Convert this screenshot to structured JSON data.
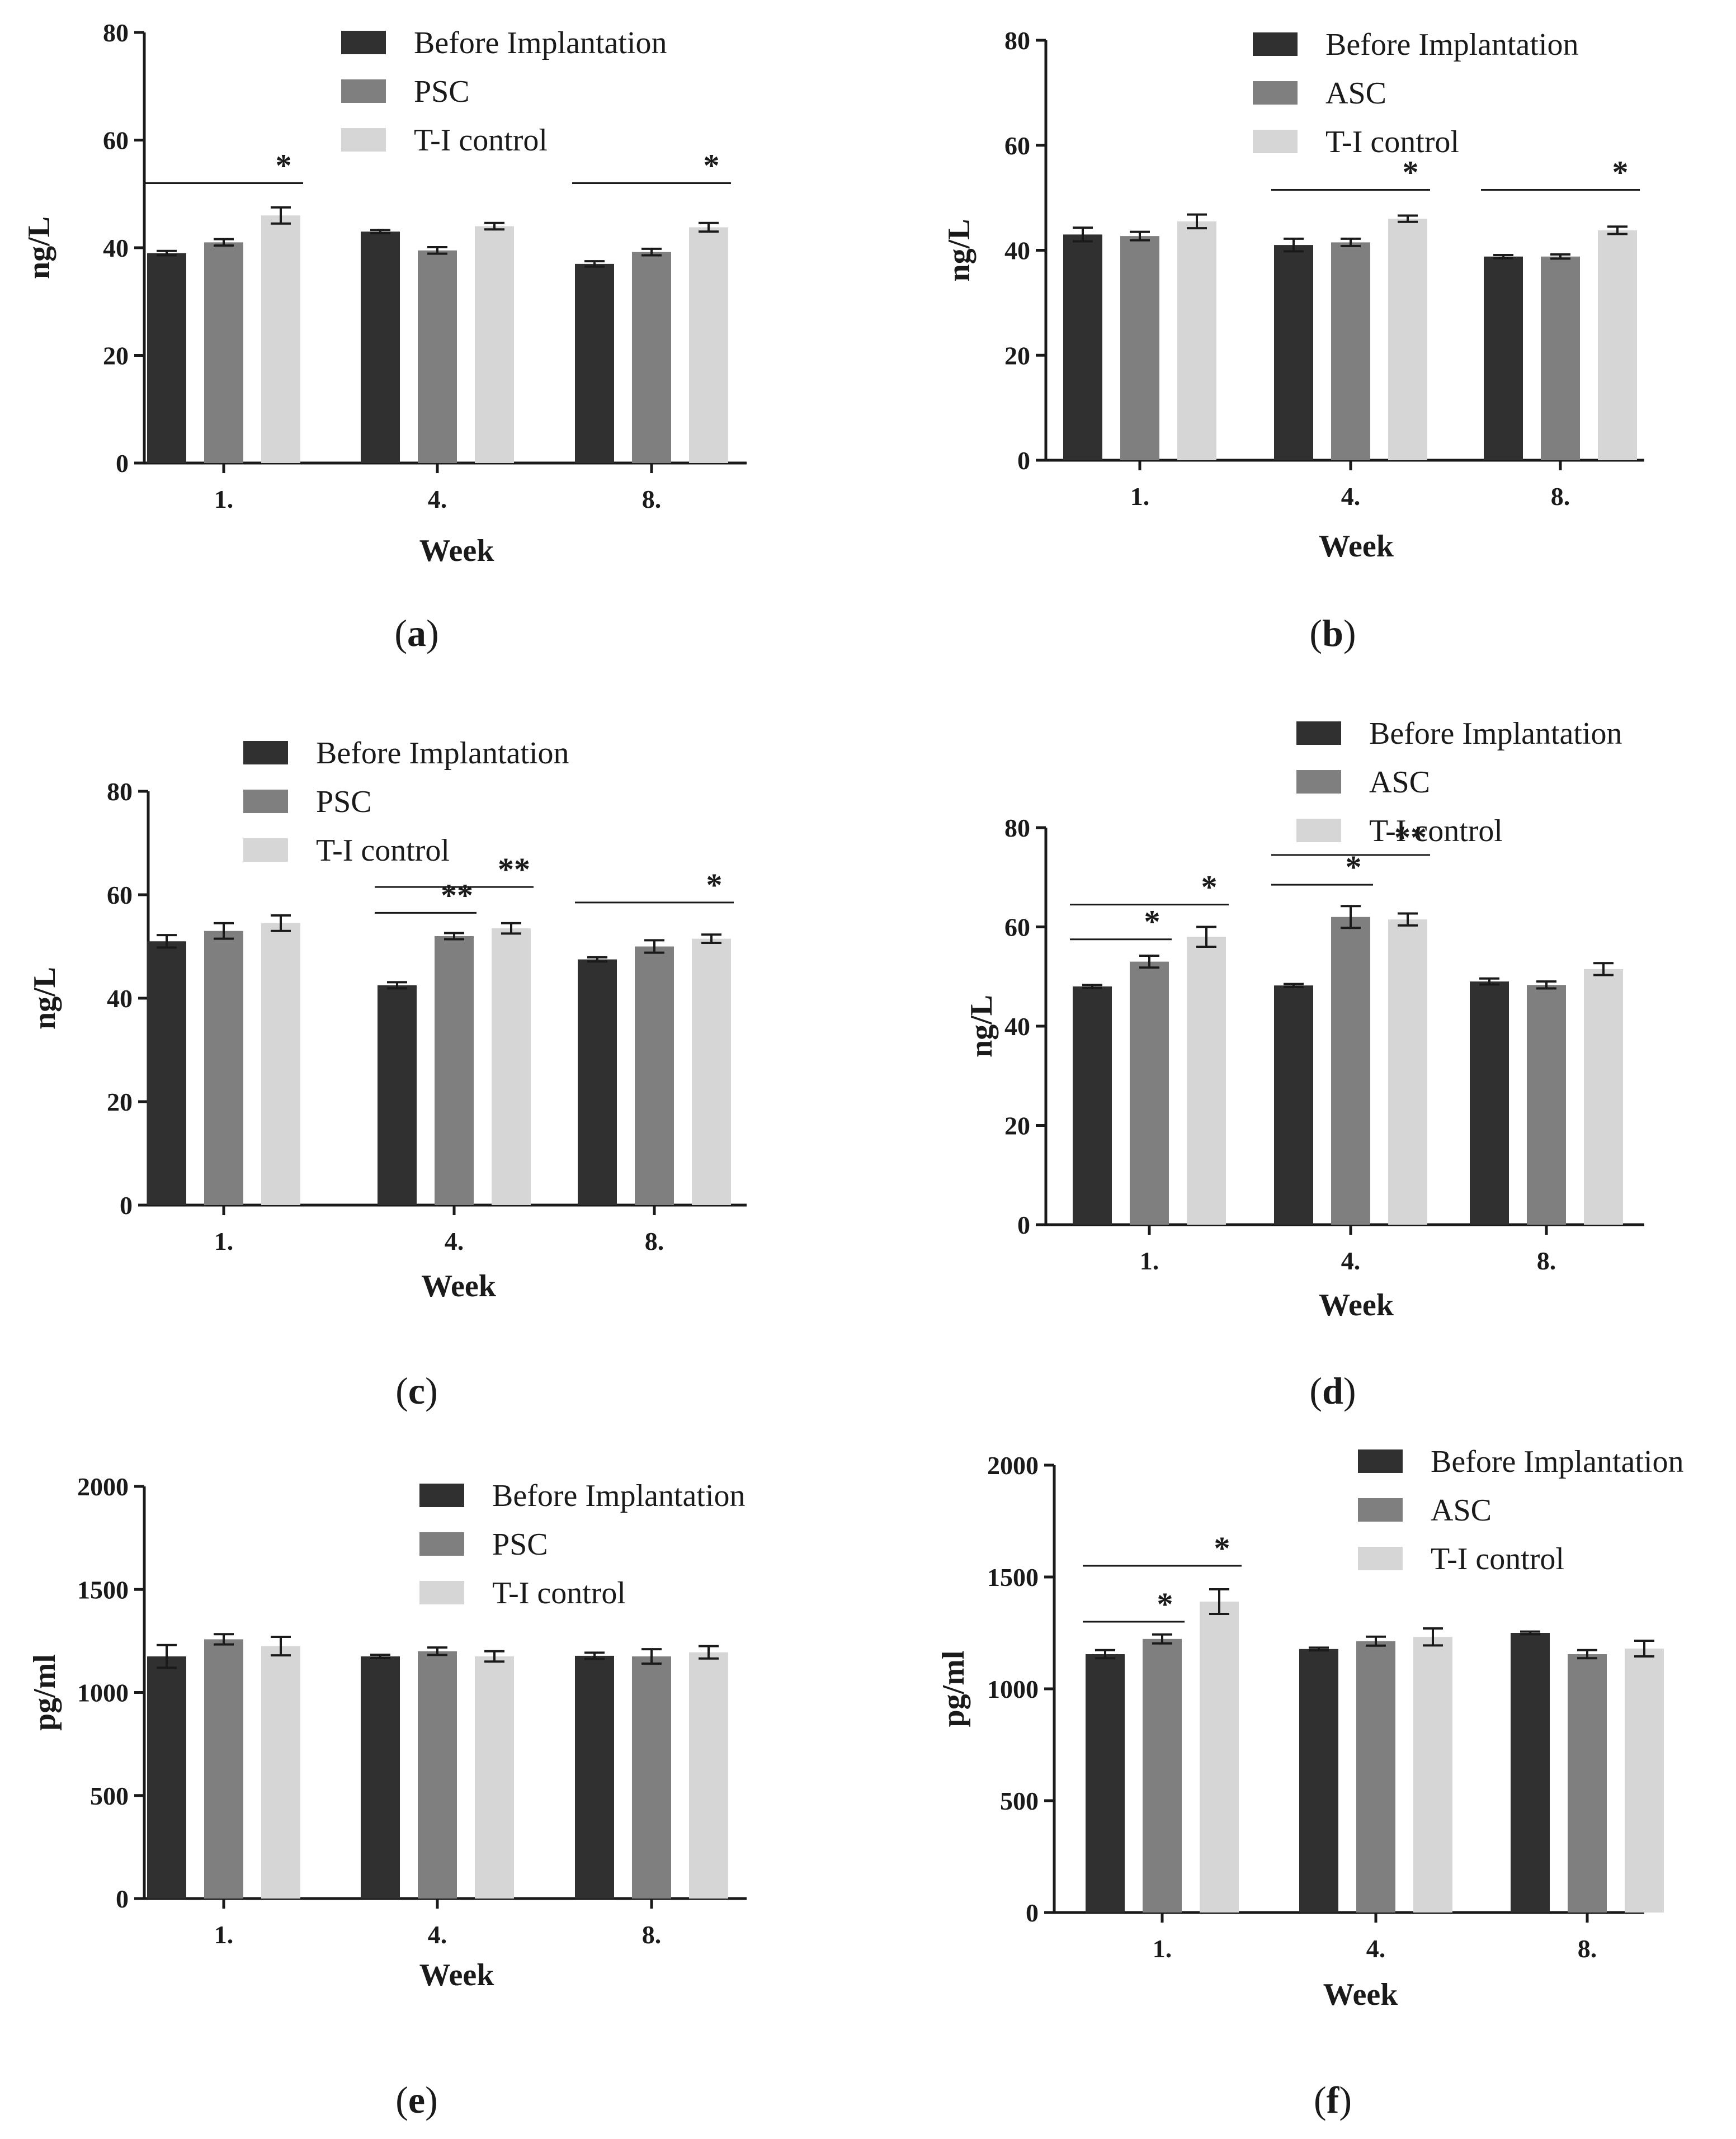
{
  "figure": {
    "colors": {
      "before": "#303030",
      "mid": "#7f7f7f",
      "control": "#d6d6d6"
    }
  },
  "chart_data": [
    {
      "id": "a",
      "type": "bar",
      "panel_label": "a",
      "xlabel": "Week",
      "ylabel": "ng/L",
      "ylim": [
        0,
        80
      ],
      "yticks": [
        0,
        20,
        40,
        60,
        80
      ],
      "categories": [
        "1.",
        "4.",
        "8."
      ],
      "legend": [
        "Before Implantation",
        "PSC",
        "T-I control"
      ],
      "legend_position": "top-right",
      "series": [
        {
          "name": "Before Implantation",
          "values": [
            39,
            43,
            37
          ],
          "errors": [
            0.4,
            0.3,
            0.5
          ]
        },
        {
          "name": "PSC",
          "values": [
            41,
            39.5,
            39.2
          ],
          "errors": [
            0.6,
            0.6,
            0.6
          ]
        },
        {
          "name": "T-I control",
          "values": [
            46,
            44,
            43.8
          ],
          "errors": [
            1.5,
            0.6,
            0.8
          ]
        }
      ],
      "significance": [
        {
          "category": 0,
          "from": 0,
          "to": 2,
          "label": "*",
          "y": 52
        },
        {
          "category": 2,
          "from": 0,
          "to": 2,
          "label": "*",
          "y": 52
        }
      ]
    },
    {
      "id": "b",
      "type": "bar",
      "panel_label": "b",
      "xlabel": "Week",
      "ylabel": "ng/L",
      "ylim": [
        0,
        80
      ],
      "yticks": [
        0,
        20,
        40,
        60,
        80
      ],
      "categories": [
        "1.",
        "4.",
        "8."
      ],
      "legend": [
        "Before Implantation",
        "ASC",
        "T-I control"
      ],
      "legend_position": "top-right",
      "series": [
        {
          "name": "Before Implantation",
          "values": [
            43,
            41,
            38.8
          ],
          "errors": [
            1.3,
            1.2,
            0.3
          ]
        },
        {
          "name": "ASC",
          "values": [
            42.7,
            41.5,
            38.8
          ],
          "errors": [
            0.8,
            0.7,
            0.4
          ]
        },
        {
          "name": "T-I control",
          "values": [
            45.5,
            46,
            43.8
          ],
          "errors": [
            1.3,
            0.6,
            0.7
          ]
        }
      ],
      "significance": [
        {
          "category": 1,
          "from": 0,
          "to": 2,
          "label": "*",
          "y": 51.5
        },
        {
          "category": 2,
          "from": 0,
          "to": 2,
          "label": "*",
          "y": 51.5
        }
      ]
    },
    {
      "id": "c",
      "type": "bar",
      "panel_label": "c",
      "xlabel": "Week",
      "ylabel": "ng/L",
      "ylim": [
        0,
        80
      ],
      "yticks": [
        0,
        20,
        40,
        60,
        80
      ],
      "categories": [
        "1.",
        "4.",
        "8."
      ],
      "legend": [
        "Before Implantation",
        "PSC",
        "T-I control"
      ],
      "legend_position": "top",
      "series": [
        {
          "name": "Before Implantation",
          "values": [
            51,
            42.5,
            47.5
          ],
          "errors": [
            1.2,
            0.6,
            0.4
          ]
        },
        {
          "name": "PSC",
          "values": [
            53,
            52,
            50
          ],
          "errors": [
            1.5,
            0.6,
            1.2
          ]
        },
        {
          "name": "T-I control",
          "values": [
            54.5,
            53.5,
            51.5
          ],
          "errors": [
            1.5,
            1.0,
            0.8
          ]
        }
      ],
      "significance": [
        {
          "category": 1,
          "from": 0,
          "to": 1,
          "label": "**",
          "y": 56.5
        },
        {
          "category": 1,
          "from": 0,
          "to": 2,
          "label": "**",
          "y": 61.5
        },
        {
          "category": 2,
          "from": 0,
          "to": 2,
          "label": "*",
          "y": 58.5
        }
      ]
    },
    {
      "id": "d",
      "type": "bar",
      "panel_label": "d",
      "xlabel": "Week",
      "ylabel": "ng/L",
      "ylim": [
        0,
        80
      ],
      "yticks": [
        0,
        20,
        40,
        60,
        80
      ],
      "categories": [
        "1.",
        "4.",
        "8."
      ],
      "legend": [
        "Before Implantation",
        "ASC",
        "T-I control"
      ],
      "legend_position": "top-right",
      "series": [
        {
          "name": "Before Implantation",
          "values": [
            48,
            48.2,
            49
          ],
          "errors": [
            0.3,
            0.3,
            0.6
          ]
        },
        {
          "name": "ASC",
          "values": [
            53,
            62,
            48.3
          ],
          "errors": [
            1.2,
            2.2,
            0.7
          ]
        },
        {
          "name": "T-I control",
          "values": [
            58,
            61.5,
            51.5
          ],
          "errors": [
            2.0,
            1.2,
            1.2
          ]
        }
      ],
      "significance": [
        {
          "category": 0,
          "from": 0,
          "to": 1,
          "label": "*",
          "y": 57.5
        },
        {
          "category": 0,
          "from": 0,
          "to": 2,
          "label": "*",
          "y": 64.5
        },
        {
          "category": 1,
          "from": 0,
          "to": 1,
          "label": "*",
          "y": 68.5
        },
        {
          "category": 1,
          "from": 0,
          "to": 2,
          "label": "**",
          "y": 74.5
        }
      ]
    },
    {
      "id": "e",
      "type": "bar",
      "panel_label": "e",
      "xlabel": "Week",
      "ylabel": "pg/ml",
      "ylim": [
        0,
        2000
      ],
      "yticks": [
        0,
        500,
        1000,
        1500,
        2000
      ],
      "categories": [
        "1.",
        "4.",
        "8."
      ],
      "legend": [
        "Before Implantation",
        "PSC",
        "T-I control"
      ],
      "legend_position": "top-right",
      "series": [
        {
          "name": "Before Implantation",
          "values": [
            1175,
            1175,
            1178
          ],
          "errors": [
            55,
            8,
            15
          ]
        },
        {
          "name": "PSC",
          "values": [
            1258,
            1200,
            1175
          ],
          "errors": [
            25,
            18,
            35
          ]
        },
        {
          "name": "T-I control",
          "values": [
            1225,
            1175,
            1195
          ],
          "errors": [
            45,
            25,
            30
          ]
        }
      ],
      "significance": []
    },
    {
      "id": "f",
      "type": "bar",
      "panel_label": "f",
      "xlabel": "Week",
      "ylabel": "pg/ml",
      "ylim": [
        0,
        2000
      ],
      "yticks": [
        0,
        500,
        1000,
        1500,
        2000
      ],
      "categories": [
        "1.",
        "4.",
        "8."
      ],
      "legend": [
        "Before Implantation",
        "ASC",
        "T-I control"
      ],
      "legend_position": "top-right",
      "series": [
        {
          "name": "Before Implantation",
          "values": [
            1155,
            1178,
            1250
          ],
          "errors": [
            18,
            6,
            6
          ]
        },
        {
          "name": "ASC",
          "values": [
            1223,
            1213,
            1155
          ],
          "errors": [
            20,
            20,
            18
          ]
        },
        {
          "name": "T-I control",
          "values": [
            1390,
            1232,
            1180
          ],
          "errors": [
            55,
            38,
            35
          ]
        }
      ],
      "significance": [
        {
          "category": 0,
          "from": 0,
          "to": 1,
          "label": "*",
          "y": 1300
        },
        {
          "category": 0,
          "from": 0,
          "to": 2,
          "label": "*",
          "y": 1550
        }
      ]
    }
  ]
}
